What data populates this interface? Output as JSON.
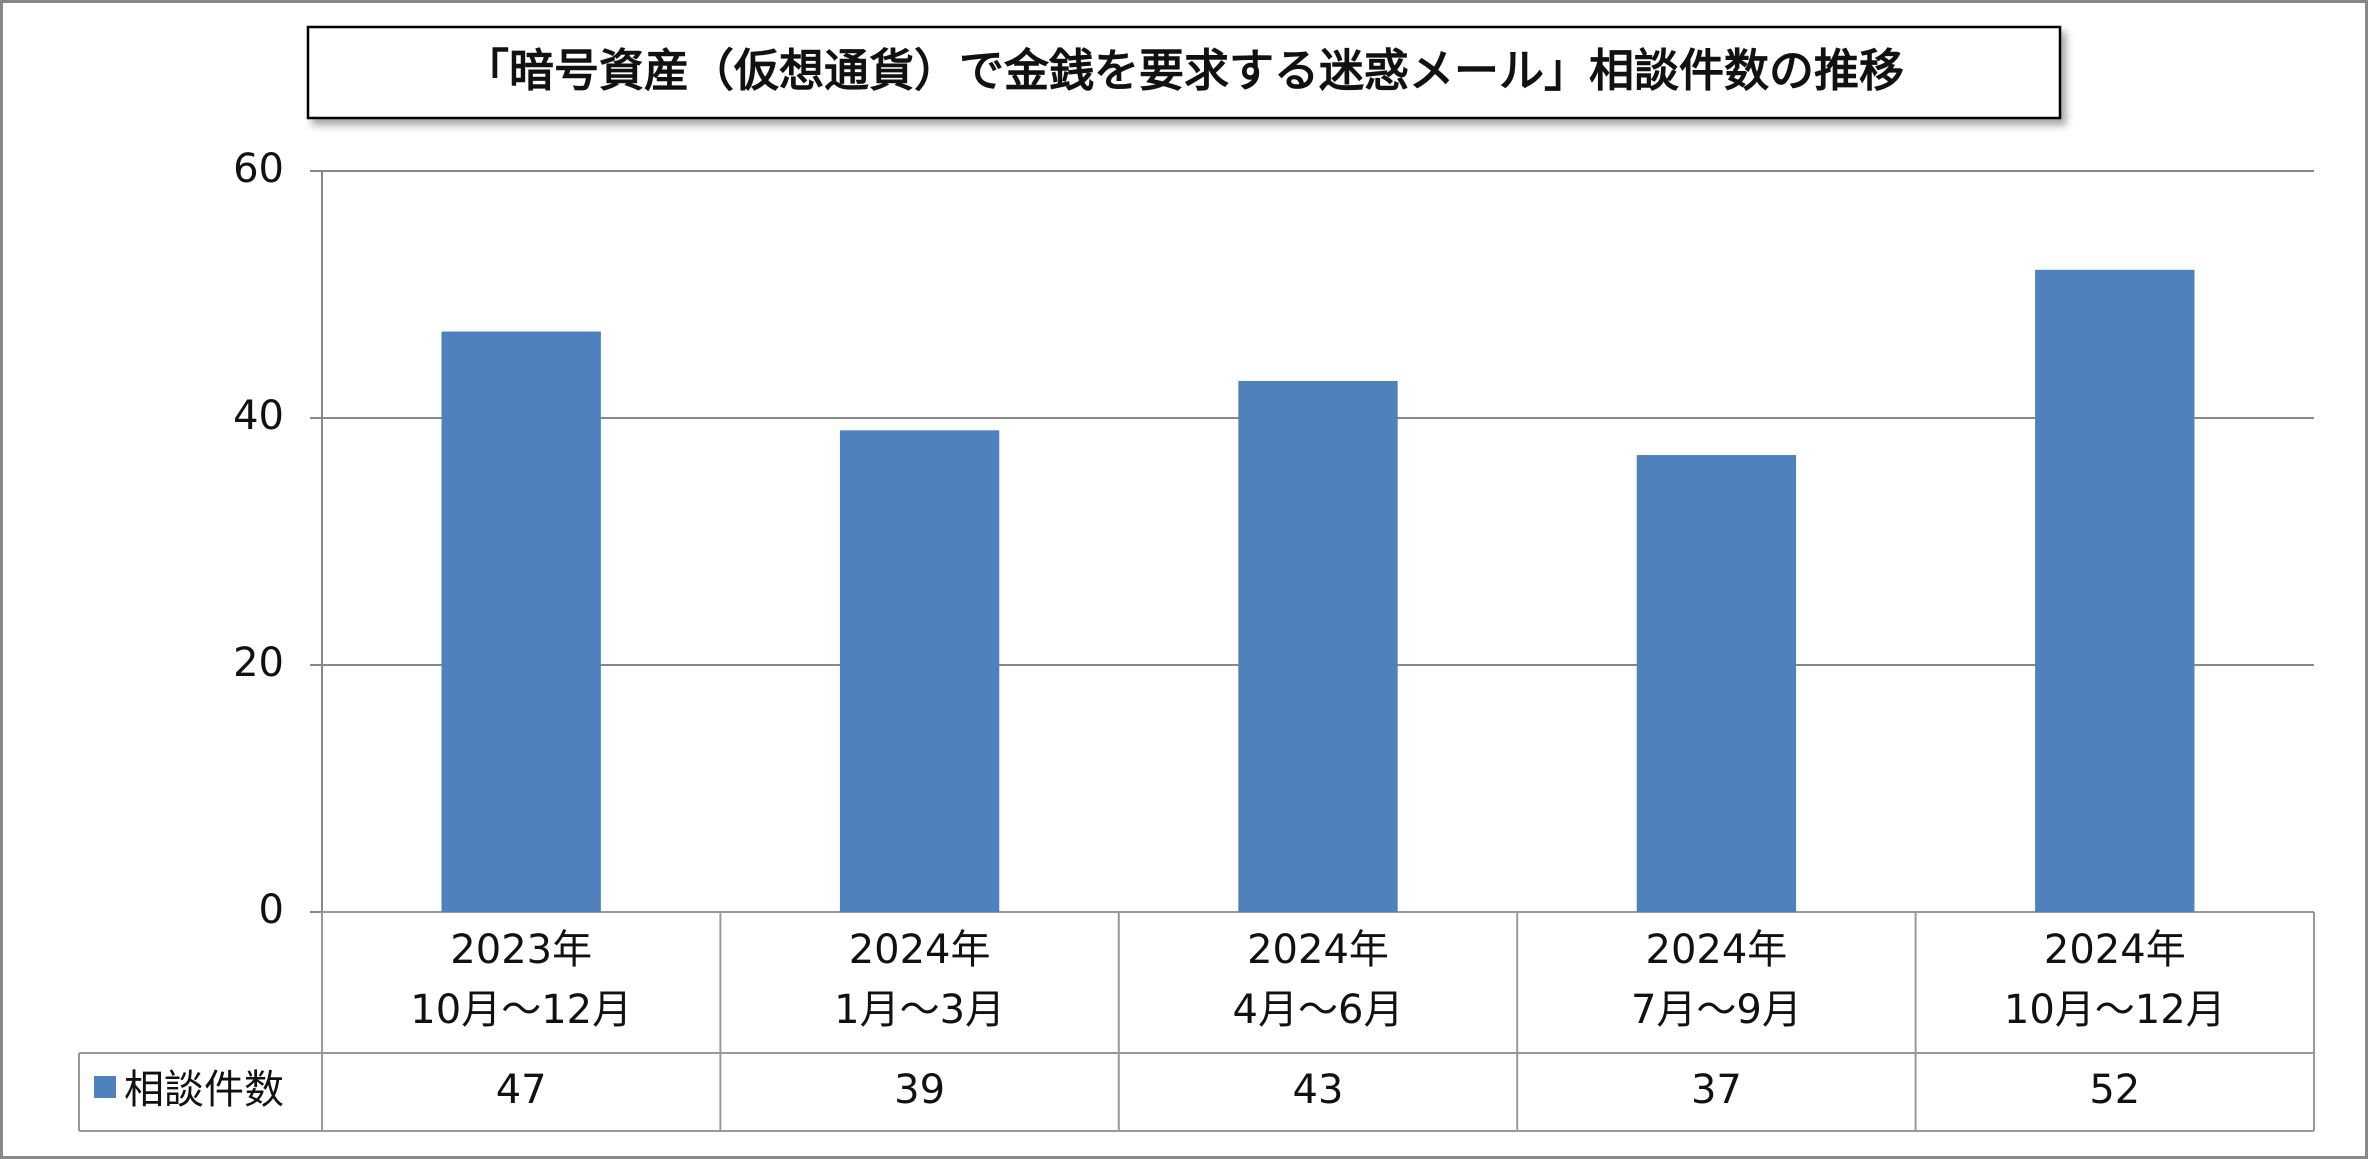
{
  "chart_data": {
    "type": "bar",
    "title": "「暗号資産（仮想通貨）で金銭を要求する迷惑メール」相談件数の推移",
    "categories": [
      [
        "2023年",
        "10月～12月"
      ],
      [
        "2024年",
        "1月～3月"
      ],
      [
        "2024年",
        "4月～6月"
      ],
      [
        "2024年",
        "7月～9月"
      ],
      [
        "2024年",
        "10月～12月"
      ]
    ],
    "series": [
      {
        "name": "相談件数",
        "color": "#4f81bd",
        "values": [
          47,
          39,
          43,
          37,
          52
        ]
      }
    ],
    "ylim": [
      0,
      60
    ],
    "yticks": [
      0,
      20,
      40,
      60
    ],
    "grid": true,
    "legend": "data-table"
  }
}
